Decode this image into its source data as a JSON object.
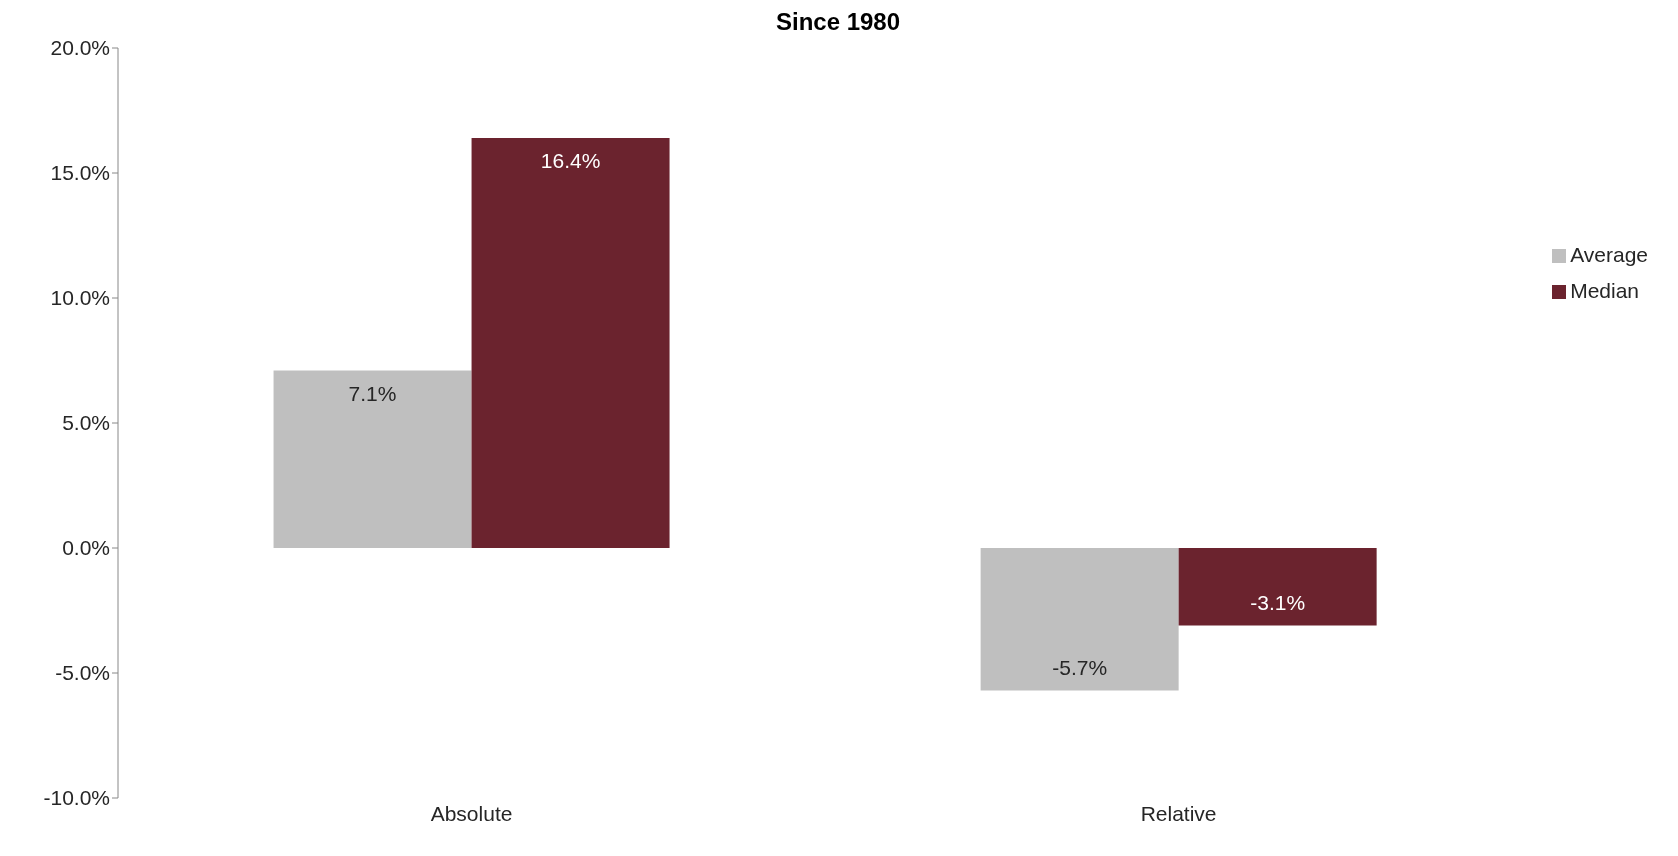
{
  "chart_data": {
    "type": "bar",
    "title": "Since 1980",
    "categories": [
      "Absolute",
      "Relative"
    ],
    "series": [
      {
        "name": "Average",
        "color": "#bfbfbf",
        "values": [
          7.1,
          -5.7
        ],
        "value_labels": [
          "7.1%",
          "-5.7%"
        ]
      },
      {
        "name": "Median",
        "color": "#6b232e",
        "values": [
          16.4,
          -3.1
        ],
        "value_labels": [
          "16.4%",
          "-3.1%"
        ]
      }
    ],
    "ylim": [
      -10,
      20
    ],
    "yticks": [
      {
        "value": -10,
        "label": "-10.0%"
      },
      {
        "value": -5,
        "label": "-5.0%"
      },
      {
        "value": 0,
        "label": "0.0%"
      },
      {
        "value": 5,
        "label": "5.0%"
      },
      {
        "value": 10,
        "label": "10.0%"
      },
      {
        "value": 15,
        "label": "15.0%"
      },
      {
        "value": 20,
        "label": "20.0%"
      }
    ],
    "grid": false,
    "legend": "right"
  }
}
